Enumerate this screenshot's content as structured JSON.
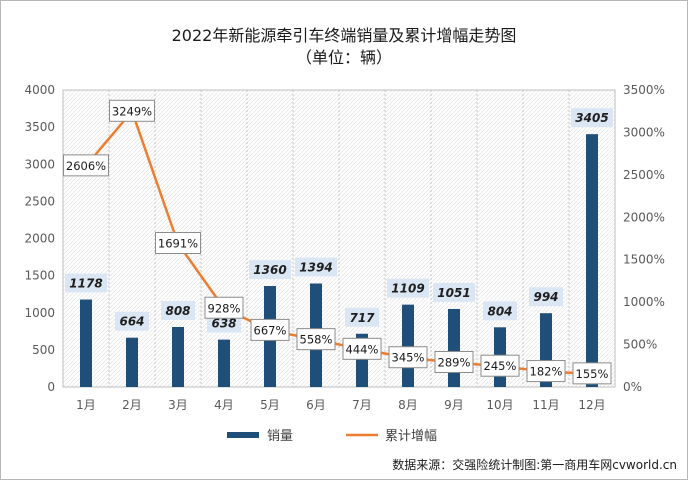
{
  "chart_data": {
    "type": "bar",
    "title": "2022年新能源牵引车终端销量及累计增幅走势图",
    "subtitle": "（单位：辆）",
    "categories": [
      "1月",
      "2月",
      "3月",
      "4月",
      "5月",
      "6月",
      "7月",
      "8月",
      "9月",
      "10月",
      "11月",
      "12月"
    ],
    "series": [
      {
        "name": "销量",
        "type": "bar",
        "axis": "left",
        "color": "#1f4e79",
        "values": [
          1178,
          664,
          808,
          638,
          1360,
          1394,
          717,
          1109,
          1051,
          804,
          994,
          3405
        ],
        "labels": [
          "1178",
          "664",
          "808",
          "638",
          "1360",
          "1394",
          "717",
          "1109",
          "1051",
          "804",
          "994",
          "3405"
        ]
      },
      {
        "name": "累计增幅",
        "type": "line",
        "axis": "right",
        "color": "#ed7d31",
        "values": [
          2606,
          3249,
          1691,
          928,
          667,
          558,
          444,
          345,
          289,
          245,
          182,
          155
        ],
        "labels": [
          "2606%",
          "3249%",
          "1691%",
          "928%",
          "667%",
          "558%",
          "444%",
          "345%",
          "289%",
          "245%",
          "182%",
          "155%"
        ]
      }
    ],
    "y_left": {
      "range": [
        0,
        4000
      ],
      "ticks": [
        0,
        500,
        1000,
        1500,
        2000,
        2500,
        3000,
        3500,
        4000
      ],
      "tick_labels": [
        "0",
        "500",
        "1000",
        "1500",
        "2000",
        "2500",
        "3000",
        "3500",
        "4000"
      ]
    },
    "y_right": {
      "range": [
        0,
        3500
      ],
      "ticks": [
        0,
        500,
        1000,
        1500,
        2000,
        2500,
        3000,
        3500
      ],
      "tick_labels": [
        "0%",
        "500%",
        "1000%",
        "1500%",
        "2000%",
        "2500%",
        "3000%",
        "3500%"
      ]
    },
    "grid": "vertical dashed",
    "legend": "bottom",
    "source": "数据来源：交强险统计制图:第一商用车网cvworld.cn"
  }
}
